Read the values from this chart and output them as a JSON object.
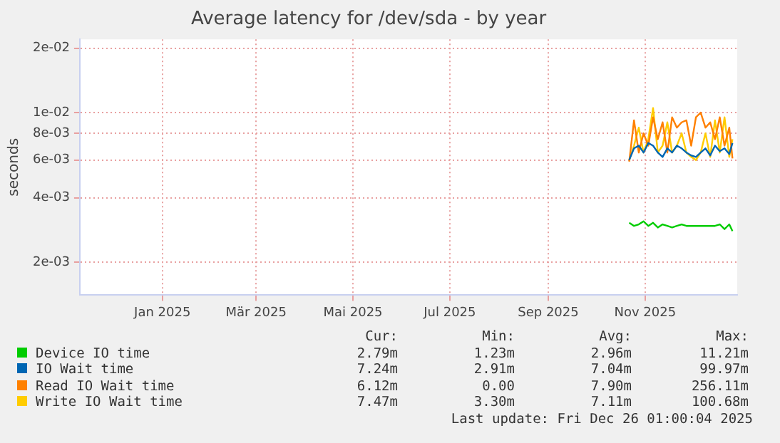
{
  "chart_data": {
    "type": "line",
    "title": "Average latency for /dev/sda - by year",
    "ylabel": "seconds",
    "x": [
      "2025-10-22",
      "2025-10-25",
      "2025-10-28",
      "2025-10-31",
      "2025-11-03",
      "2025-11-06",
      "2025-11-09",
      "2025-11-12",
      "2025-11-15",
      "2025-11-18",
      "2025-11-21",
      "2025-11-24",
      "2025-11-27",
      "2025-11-30",
      "2025-12-03",
      "2025-12-06",
      "2025-12-09",
      "2025-12-12",
      "2025-12-15",
      "2025-12-18",
      "2025-12-21",
      "2025-12-24",
      "2025-12-26"
    ],
    "series": [
      {
        "name": "Device IO time",
        "color": "#00cc00",
        "values": [
          0.00305,
          0.00295,
          0.003,
          0.0031,
          0.00295,
          0.00305,
          0.0029,
          0.003,
          0.00295,
          0.0029,
          0.00295,
          0.003,
          0.00295,
          0.00295,
          0.00295,
          0.00295,
          0.00295,
          0.00295,
          0.00295,
          0.003,
          0.00285,
          0.003,
          0.00279
        ]
      },
      {
        "name": "IO Wait time",
        "color": "#0066b3",
        "values": [
          0.006,
          0.0068,
          0.007,
          0.0065,
          0.0072,
          0.007,
          0.0065,
          0.0062,
          0.0068,
          0.0065,
          0.007,
          0.0068,
          0.0065,
          0.0063,
          0.0062,
          0.0065,
          0.0068,
          0.0063,
          0.007,
          0.0066,
          0.0068,
          0.0064,
          0.0072
        ]
      },
      {
        "name": "Read IO Wait time",
        "color": "#ff8000",
        "values": [
          0.0059,
          0.0092,
          0.0065,
          0.008,
          0.007,
          0.0095,
          0.0075,
          0.009,
          0.0065,
          0.0095,
          0.0085,
          0.009,
          0.0092,
          0.007,
          0.0095,
          0.01,
          0.0085,
          0.009,
          0.0075,
          0.0095,
          0.007,
          0.0085,
          0.0061
        ]
      },
      {
        "name": "Write IO Wait time",
        "color": "#ffcc00",
        "values": [
          0.006,
          0.007,
          0.0085,
          0.0065,
          0.0075,
          0.0105,
          0.0065,
          0.007,
          0.009,
          0.0065,
          0.007,
          0.008,
          0.0065,
          0.0062,
          0.006,
          0.0065,
          0.008,
          0.0062,
          0.0092,
          0.0065,
          0.0095,
          0.0062,
          0.0075
        ]
      }
    ],
    "log": "y",
    "xlim": [
      "2024-11-10",
      "2025-12-29"
    ],
    "ylim": [
      0.0014,
      0.022
    ],
    "xticks": [
      {
        "value": "2025-01-01",
        "label": "Jan 2025"
      },
      {
        "value": "2025-03-01",
        "label": "Mär 2025"
      },
      {
        "value": "2025-05-01",
        "label": "Mai 2025"
      },
      {
        "value": "2025-07-01",
        "label": "Jul 2025"
      },
      {
        "value": "2025-09-01",
        "label": "Sep 2025"
      },
      {
        "value": "2025-11-01",
        "label": "Nov 2025"
      }
    ],
    "yticks": [
      {
        "value": 0.002,
        "label": "2e-03"
      },
      {
        "value": 0.004,
        "label": "4e-03"
      },
      {
        "value": 0.006,
        "label": "6e-03"
      },
      {
        "value": 0.008,
        "label": "8e-03"
      },
      {
        "value": 0.01,
        "label": "1e-02"
      },
      {
        "value": 0.02,
        "label": "2e-02"
      }
    ],
    "grid": true,
    "legend": "bottom",
    "marker": "none",
    "line_style": "solid",
    "annotations": [
      "Cur:",
      "Min:",
      "Avg:",
      "Max:",
      "2.79m",
      "1.23m",
      "2.96m",
      "11.21m",
      "7.24m",
      "2.91m",
      "7.04m",
      "99.97m",
      "6.12m",
      "0.00",
      "7.90m",
      "256.11m",
      "7.47m",
      "3.30m",
      "7.11m",
      "100.68m",
      "Last update: Fri Dec 26 01:00:04 2025"
    ]
  }
}
